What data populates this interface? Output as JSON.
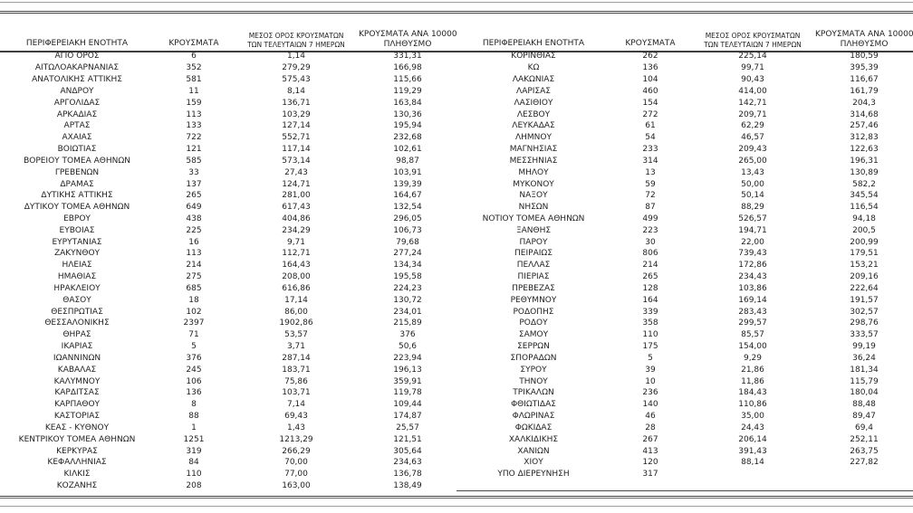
{
  "table": {
    "headers": {
      "region": "ΠΕΡΙΦΕΡΕΙΑΚΗ ΕΝΟΤΗΤΑ",
      "cases": "ΚΡΟΥΣΜΑΤΑ",
      "avg7_line1": "ΜΕΣΟΣ ΟΡΟΣ ΚΡΟΥΣΜΑΤΩΝ",
      "avg7_line2": "ΤΩΝ ΤΕΛΕΥΤΑΙΩΝ 7 ΗΜΕΡΩΝ",
      "per100k_line1": "ΚΡΟΥΣΜΑΤΑ ΑΝΑ 100000",
      "per100k_line2": "ΠΛΗΘΥΣΜΟ"
    },
    "left_rows": [
      [
        "ΑΓΙΟ ΟΡΟΣ",
        "6",
        "1,14",
        "331,31"
      ],
      [
        "ΑΙΤΩΛΟΑΚΑΡΝΑΝΙΑΣ",
        "352",
        "279,29",
        "166,98"
      ],
      [
        "ΑΝΑΤΟΛΙΚΗΣ ΑΤΤΙΚΗΣ",
        "581",
        "575,43",
        "115,66"
      ],
      [
        "ΑΝΔΡΟΥ",
        "11",
        "8,14",
        "119,29"
      ],
      [
        "ΑΡΓΟΛΙΔΑΣ",
        "159",
        "136,71",
        "163,84"
      ],
      [
        "ΑΡΚΑΔΙΑΣ",
        "113",
        "103,29",
        "130,36"
      ],
      [
        "ΑΡΤΑΣ",
        "133",
        "127,14",
        "195,94"
      ],
      [
        "ΑΧΑΪΑΣ",
        "722",
        "552,71",
        "232,68"
      ],
      [
        "ΒΟΙΩΤΙΑΣ",
        "121",
        "117,14",
        "102,61"
      ],
      [
        "ΒΟΡΕΙΟΥ ΤΟΜΕΑ ΑΘΗΝΩΝ",
        "585",
        "573,14",
        "98,87"
      ],
      [
        "ΓΡΕΒΕΝΩΝ",
        "33",
        "27,43",
        "103,91"
      ],
      [
        "ΔΡΑΜΑΣ",
        "137",
        "124,71",
        "139,39"
      ],
      [
        "ΔΥΤΙΚΗΣ ΑΤΤΙΚΗΣ",
        "265",
        "281,00",
        "164,67"
      ],
      [
        "ΔΥΤΙΚΟΥ ΤΟΜΕΑ ΑΘΗΝΩΝ",
        "649",
        "617,43",
        "132,54"
      ],
      [
        "ΕΒΡΟΥ",
        "438",
        "404,86",
        "296,05"
      ],
      [
        "ΕΥΒΟΙΑΣ",
        "225",
        "234,29",
        "106,73"
      ],
      [
        "ΕΥΡΥΤΑΝΙΑΣ",
        "16",
        "9,71",
        "79,68"
      ],
      [
        "ΖΑΚΥΝΘΟΥ",
        "113",
        "112,71",
        "277,24"
      ],
      [
        "ΗΛΕΙΑΣ",
        "214",
        "164,43",
        "134,34"
      ],
      [
        "ΗΜΑΘΙΑΣ",
        "275",
        "208,00",
        "195,58"
      ],
      [
        "ΗΡΑΚΛΕΙΟΥ",
        "685",
        "616,86",
        "224,23"
      ],
      [
        "ΘΑΣΟΥ",
        "18",
        "17,14",
        "130,72"
      ],
      [
        "ΘΕΣΠΡΩΤΙΑΣ",
        "102",
        "86,00",
        "234,01"
      ],
      [
        "ΘΕΣΣΑΛΟΝΙΚΗΣ",
        "2397",
        "1902,86",
        "215,89"
      ],
      [
        "ΘΗΡΑΣ",
        "71",
        "53,57",
        "376"
      ],
      [
        "ΙΚΑΡΙΑΣ",
        "5",
        "3,71",
        "50,6"
      ],
      [
        "ΙΩΑΝΝΙΝΩΝ",
        "376",
        "287,14",
        "223,94"
      ],
      [
        "ΚΑΒΑΛΑΣ",
        "245",
        "183,71",
        "196,13"
      ],
      [
        "ΚΑΛΥΜΝΟΥ",
        "106",
        "75,86",
        "359,91"
      ],
      [
        "ΚΑΡΔΙΤΣΑΣ",
        "136",
        "103,71",
        "119,78"
      ],
      [
        "ΚΑΡΠΑΘΟΥ",
        "8",
        "7,14",
        "109,44"
      ],
      [
        "ΚΑΣΤΟΡΙΑΣ",
        "88",
        "69,43",
        "174,87"
      ],
      [
        "ΚΕΑΣ - ΚΥΘΝΟΥ",
        "1",
        "1,43",
        "25,57"
      ],
      [
        "ΚΕΝΤΡΙΚΟΥ ΤΟΜΕΑ ΑΘΗΝΩΝ",
        "1251",
        "1213,29",
        "121,51"
      ],
      [
        "ΚΕΡΚΥΡΑΣ",
        "319",
        "266,29",
        "305,64"
      ],
      [
        "ΚΕΦΑΛΛΗΝΙΑΣ",
        "84",
        "70,00",
        "234,63"
      ],
      [
        "ΚΙΛΚΙΣ",
        "110",
        "77,00",
        "136,78"
      ],
      [
        "ΚΟΖΑΝΗΣ",
        "208",
        "163,00",
        "138,49"
      ]
    ],
    "right_rows": [
      [
        "ΚΟΡΙΝΘΙΑΣ",
        "262",
        "225,14",
        "180,59"
      ],
      [
        "ΚΩ",
        "136",
        "99,71",
        "395,39"
      ],
      [
        "ΛΑΚΩΝΙΑΣ",
        "104",
        "90,43",
        "116,67"
      ],
      [
        "ΛΑΡΙΣΑΣ",
        "460",
        "414,00",
        "161,79"
      ],
      [
        "ΛΑΣΙΘΙΟΥ",
        "154",
        "142,71",
        "204,3"
      ],
      [
        "ΛΕΣΒΟΥ",
        "272",
        "209,71",
        "314,68"
      ],
      [
        "ΛΕΥΚΑΔΑΣ",
        "61",
        "62,29",
        "257,46"
      ],
      [
        "ΛΗΜΝΟΥ",
        "54",
        "46,57",
        "312,83"
      ],
      [
        "ΜΑΓΝΗΣΙΑΣ",
        "233",
        "209,43",
        "122,63"
      ],
      [
        "ΜΕΣΣΗΝΙΑΣ",
        "314",
        "265,00",
        "196,31"
      ],
      [
        "ΜΗΛΟΥ",
        "13",
        "13,43",
        "130,89"
      ],
      [
        "ΜΥΚΟΝΟΥ",
        "59",
        "50,00",
        "582,2"
      ],
      [
        "ΝΑΞΟΥ",
        "72",
        "50,14",
        "345,54"
      ],
      [
        "ΝΗΣΩΝ",
        "87",
        "88,29",
        "116,54"
      ],
      [
        "ΝΟΤΙΟΥ ΤΟΜΕΑ ΑΘΗΝΩΝ",
        "499",
        "526,57",
        "94,18"
      ],
      [
        "ΞΑΝΘΗΣ",
        "223",
        "194,71",
        "200,5"
      ],
      [
        "ΠΑΡΟΥ",
        "30",
        "22,00",
        "200,99"
      ],
      [
        "ΠΕΙΡΑΙΩΣ",
        "806",
        "739,43",
        "179,51"
      ],
      [
        "ΠΕΛΛΑΣ",
        "214",
        "172,86",
        "153,21"
      ],
      [
        "ΠΙΕΡΙΑΣ",
        "265",
        "234,43",
        "209,16"
      ],
      [
        "ΠΡΕΒΕΖΑΣ",
        "128",
        "103,86",
        "222,64"
      ],
      [
        "ΡΕΘΥΜΝΟΥ",
        "164",
        "169,14",
        "191,57"
      ],
      [
        "ΡΟΔΟΠΗΣ",
        "339",
        "283,43",
        "302,57"
      ],
      [
        "ΡΟΔΟΥ",
        "358",
        "299,57",
        "298,76"
      ],
      [
        "ΣΑΜΟΥ",
        "110",
        "85,57",
        "333,57"
      ],
      [
        "ΣΕΡΡΩΝ",
        "175",
        "154,00",
        "99,19"
      ],
      [
        "ΣΠΟΡΑΔΩΝ",
        "5",
        "9,29",
        "36,24"
      ],
      [
        "ΣΥΡΟΥ",
        "39",
        "21,86",
        "181,34"
      ],
      [
        "ΤΗΝΟΥ",
        "10",
        "11,86",
        "115,79"
      ],
      [
        "ΤΡΙΚΑΛΩΝ",
        "236",
        "184,43",
        "180,04"
      ],
      [
        "ΦΘΙΩΤΙΔΑΣ",
        "140",
        "110,86",
        "88,48"
      ],
      [
        "ΦΛΩΡΙΝΑΣ",
        "46",
        "35,00",
        "89,47"
      ],
      [
        "ΦΩΚΙΔΑΣ",
        "28",
        "24,43",
        "69,4"
      ],
      [
        "ΧΑΛΚΙΔΙΚΗΣ",
        "267",
        "206,14",
        "252,11"
      ],
      [
        "ΧΑΝΙΩΝ",
        "413",
        "391,43",
        "263,75"
      ],
      [
        "ΧΙΟΥ",
        "120",
        "88,14",
        "227,82"
      ],
      [
        "ΥΠΟ ΔΙΕΡΕΥΝΗΣΗ",
        "317",
        "",
        ""
      ]
    ]
  }
}
